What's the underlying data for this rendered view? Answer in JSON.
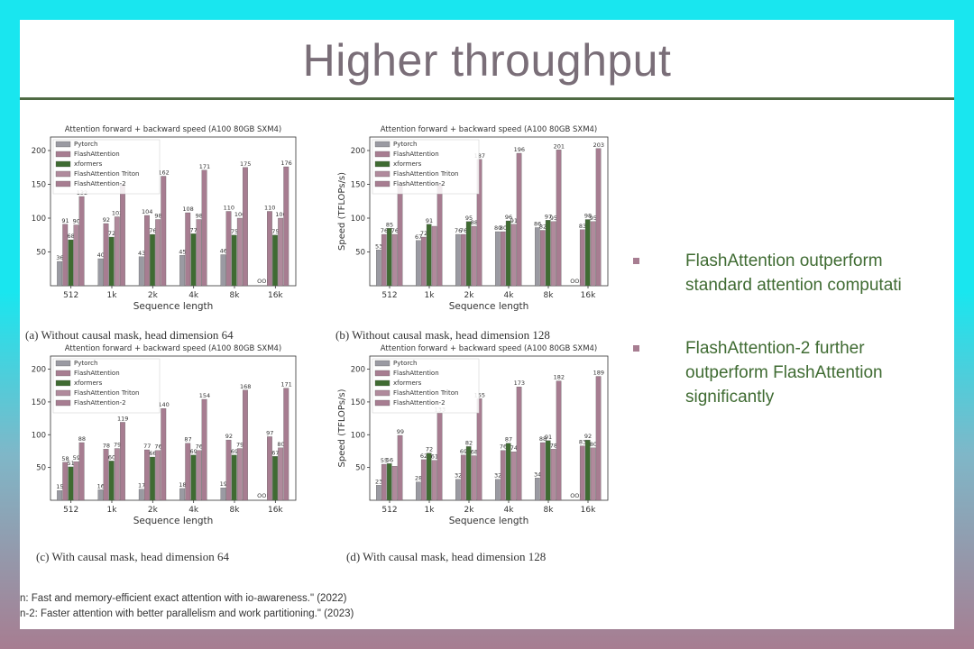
{
  "slide": {
    "title": "Higher throughput",
    "bullets": [
      {
        "text_lines": [
          "FlashAttention outperform",
          "standard attention computati"
        ]
      },
      {
        "text_lines": [
          "FlashAttention-2 further",
          "outperform FlashAttention",
          "significantly"
        ]
      }
    ],
    "references": [
      "n: Fast and memory-efficient exact attention with io-awareness.\" (2022)",
      "n-2: Faster attention with better parallelism and work partitioning.\" (2023)"
    ],
    "colors": {
      "flashattention2": "#a77d91",
      "xformers": "#3f6b32",
      "rule": "#4f6a43"
    }
  },
  "chart_data": [
    {
      "type": "bar",
      "title": "Attention forward + backward speed (A100 80GB SXM4)",
      "caption": "(a) Without causal mask, head dimension 64",
      "xlabel": "Sequence length",
      "ylabel": "",
      "ylim": [
        0,
        220
      ],
      "yticks": [
        "50",
        "100",
        "150",
        "200"
      ],
      "categories": [
        "512",
        "1k",
        "2k",
        "4k",
        "8k",
        "16k"
      ],
      "legend": "top-left",
      "series": [
        {
          "name": "Pytorch",
          "values": [
            36,
            40,
            43,
            45,
            46,
            null
          ],
          "labels": [
            "36",
            "40",
            "43",
            "45",
            "46",
            "OOM"
          ]
        },
        {
          "name": "FlashAttention",
          "values": [
            91,
            92,
            104,
            108,
            110,
            110
          ],
          "labels": [
            "91",
            "92",
            "104",
            "108",
            "110",
            "110"
          ]
        },
        {
          "name": "xformers",
          "values": [
            68,
            72,
            76,
            77,
            75,
            75
          ],
          "labels": [
            "68",
            "72",
            "76",
            "77",
            "75",
            "75"
          ]
        },
        {
          "name": "FlashAttention Triton",
          "values": [
            90,
            102,
            98,
            98,
            100,
            100
          ],
          "labels": [
            "90",
            "102",
            "98",
            "98",
            "100",
            "100"
          ]
        },
        {
          "name": "FlashAttention-2",
          "values": [
            132,
            150,
            162,
            171,
            175,
            176
          ],
          "labels": [
            "132",
            "",
            "162",
            "171",
            "175",
            "176"
          ]
        }
      ]
    },
    {
      "type": "bar",
      "title": "Attention forward + backward speed (A100 80GB SXM4)",
      "caption": "(b) Without causal mask, head dimension 128",
      "xlabel": "Sequence length",
      "ylabel": "Speed (TFLOPs/s)",
      "ylim": [
        0,
        220
      ],
      "yticks": [
        "50",
        "100",
        "150",
        "200"
      ],
      "categories": [
        "512",
        "1k",
        "2k",
        "4k",
        "8k",
        "16k"
      ],
      "legend": "top-left",
      "series": [
        {
          "name": "Pytorch",
          "values": [
            53,
            67,
            76,
            80,
            86,
            null
          ],
          "labels": [
            "53",
            "67",
            "76",
            "80",
            "86",
            "OOM"
          ]
        },
        {
          "name": "FlashAttention",
          "values": [
            76,
            72,
            76,
            80,
            82,
            83
          ],
          "labels": [
            "76",
            "72",
            "76",
            "80",
            "82",
            "83"
          ]
        },
        {
          "name": "xformers",
          "values": [
            85,
            91,
            95,
            96,
            97,
            98
          ],
          "labels": [
            "85",
            "91",
            "95",
            "96",
            "97",
            "98"
          ]
        },
        {
          "name": "FlashAttention Triton",
          "values": [
            76,
            88,
            88,
            91,
            95,
            95
          ],
          "labels": [
            "76",
            "",
            "88",
            "91",
            "95",
            "95"
          ]
        },
        {
          "name": "FlashAttention-2",
          "values": [
            150,
            150,
            187,
            196,
            201,
            203
          ],
          "labels": [
            "",
            "",
            "187",
            "196",
            "201",
            "203"
          ]
        }
      ]
    },
    {
      "type": "bar",
      "title": "Attention forward + backward speed (A100 80GB SXM4)",
      "caption": "(c) With causal mask, head dimension 64",
      "xlabel": "Sequence length",
      "ylabel": "",
      "ylim": [
        0,
        220
      ],
      "yticks": [
        "50",
        "100",
        "150",
        "200"
      ],
      "categories": [
        "512",
        "1k",
        "2k",
        "4k",
        "8k",
        "16k"
      ],
      "legend": "top-left",
      "series": [
        {
          "name": "Pytorch",
          "values": [
            15,
            16,
            17,
            18,
            19,
            null
          ],
          "labels": [
            "15",
            "16",
            "17",
            "18",
            "19",
            "OOM"
          ]
        },
        {
          "name": "FlashAttention",
          "values": [
            58,
            78,
            77,
            87,
            92,
            97
          ],
          "labels": [
            "58",
            "78",
            "77",
            "87",
            "92",
            "97"
          ]
        },
        {
          "name": "xformers",
          "values": [
            51,
            60,
            66,
            69,
            69,
            67
          ],
          "labels": [
            "51",
            "60",
            "66",
            "69",
            "69",
            "67"
          ]
        },
        {
          "name": "FlashAttention Triton",
          "values": [
            59,
            79,
            76,
            76,
            79,
            80
          ],
          "labels": [
            "59",
            "79",
            "76",
            "76",
            "79",
            "80"
          ]
        },
        {
          "name": "FlashAttention-2",
          "values": [
            88,
            119,
            140,
            154,
            168,
            171
          ],
          "labels": [
            "88",
            "119",
            "140",
            "154",
            "168",
            "171"
          ]
        }
      ]
    },
    {
      "type": "bar",
      "title": "Attention forward + backward speed (A100 80GB SXM4)",
      "caption": "(d) With causal mask, head dimension 128",
      "xlabel": "Sequence length",
      "ylabel": "Speed (TFLOPs/s)",
      "ylim": [
        0,
        220
      ],
      "yticks": [
        "50",
        "100",
        "150",
        "200"
      ],
      "categories": [
        "512",
        "1k",
        "2k",
        "4k",
        "8k",
        "16k"
      ],
      "legend": "top-left",
      "series": [
        {
          "name": "Pytorch",
          "values": [
            23,
            28,
            32,
            32,
            34,
            null
          ],
          "labels": [
            "23",
            "28",
            "32",
            "32",
            "34",
            "OOM"
          ]
        },
        {
          "name": "FlashAttention",
          "values": [
            55,
            62,
            69,
            76,
            88,
            83
          ],
          "labels": [
            "55",
            "62",
            "69",
            "76",
            "88",
            "83"
          ]
        },
        {
          "name": "xformers",
          "values": [
            56,
            72,
            82,
            87,
            91,
            92
          ],
          "labels": [
            "56",
            "72",
            "82",
            "87",
            "91",
            "92"
          ]
        },
        {
          "name": "FlashAttention Triton",
          "values": [
            52,
            61,
            68,
            74,
            78,
            80
          ],
          "labels": [
            "",
            "61",
            "68",
            "74",
            "78",
            "80"
          ]
        },
        {
          "name": "FlashAttention-2",
          "values": [
            99,
            133,
            155,
            173,
            182,
            189
          ],
          "labels": [
            "99",
            "133",
            "155",
            "173",
            "182",
            "189"
          ]
        }
      ]
    }
  ]
}
